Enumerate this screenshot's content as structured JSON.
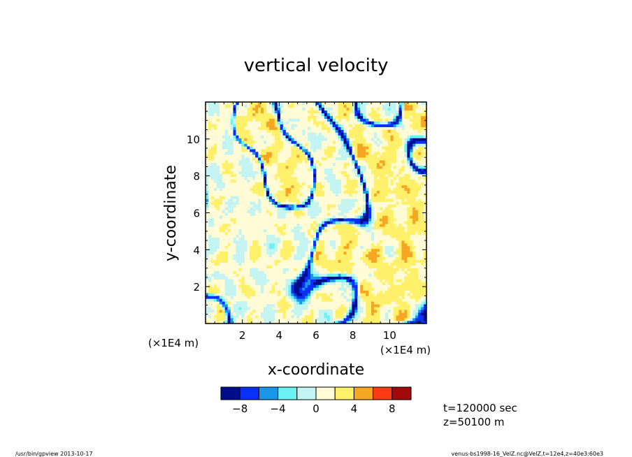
{
  "chart_data": {
    "type": "heatmap",
    "title": "vertical velocity",
    "xlabel": "x-coordinate",
    "ylabel": "y-coordinate",
    "xunit": "(×1E4 m)",
    "yunit": "(×1E4 m)",
    "xlim": [
      0,
      12
    ],
    "ylim": [
      0,
      12
    ],
    "xticks": [
      2,
      4,
      6,
      8,
      10
    ],
    "yticks": [
      2,
      4,
      6,
      8,
      10
    ],
    "colorbar": {
      "levels": [
        -10,
        -8,
        -6,
        -4,
        -2,
        0,
        2,
        4,
        6,
        8,
        10
      ],
      "colors": [
        "#000e8c",
        "#0a2ff5",
        "#1a96e8",
        "#6cf2f2",
        "#c4f4f2",
        "#fffbd6",
        "#fff06a",
        "#f5a623",
        "#ff3a14",
        "#a10a0a"
      ],
      "tick_labels": [
        "-8",
        "-4",
        "0",
        "4",
        "8"
      ],
      "tick_values": [
        -8,
        -4,
        0,
        4,
        8
      ]
    },
    "grid": false,
    "field_note": "cellular convection pattern: broad weak updrafts (0 to 4) bounded by narrow downdraft lanes (-10 to -4)"
  },
  "annotations": {
    "time": "t=120000 sec",
    "height": "z=50100 m"
  },
  "footer": {
    "left": "/usr/bin/gpview   2013-10-17",
    "right": "venus-bs1998-16_VelZ.nc@VelZ,t=12e4,z=40e3:60e3"
  }
}
